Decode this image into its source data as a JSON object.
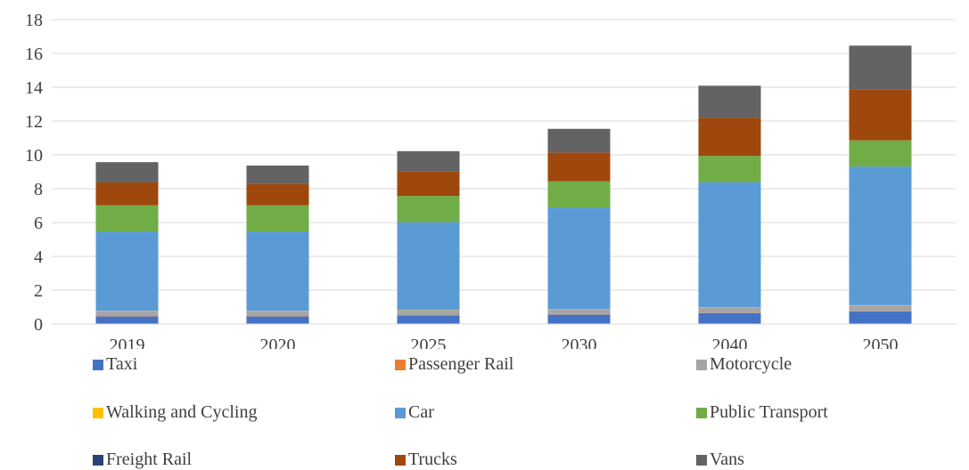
{
  "chart_data": {
    "type": "bar",
    "stacked": true,
    "categories": [
      "2019",
      "2020",
      "2025",
      "2030",
      "2040",
      "2050"
    ],
    "ylim": [
      0,
      18
    ],
    "yticks": [
      "0",
      "2",
      "4",
      "6",
      "8",
      "10",
      "12",
      "14",
      "16",
      "18"
    ],
    "grid": true,
    "legend_position": "bottom",
    "series": [
      {
        "name": "Taxi",
        "color": "#4472C4",
        "values": [
          0.45,
          0.45,
          0.5,
          0.55,
          0.65,
          0.75
        ]
      },
      {
        "name": "Passenger Rail",
        "color": "#ED7D31",
        "values": [
          0.02,
          0.02,
          0.02,
          0.02,
          0.02,
          0.02
        ]
      },
      {
        "name": "Motorcycle",
        "color": "#A5A5A5",
        "values": [
          0.28,
          0.28,
          0.28,
          0.3,
          0.3,
          0.32
        ]
      },
      {
        "name": "Walking and Cycling",
        "color": "#FFC000",
        "values": [
          0.02,
          0.02,
          0.02,
          0.02,
          0.02,
          0.02
        ]
      },
      {
        "name": "Car",
        "color": "#5B9BD5",
        "values": [
          4.7,
          4.7,
          5.2,
          6.0,
          7.4,
          8.2
        ]
      },
      {
        "name": "Public Transport",
        "color": "#70AD47",
        "values": [
          1.55,
          1.55,
          1.55,
          1.55,
          1.55,
          1.55
        ]
      },
      {
        "name": "Freight Rail",
        "color": "#264478",
        "values": [
          0.0,
          0.0,
          0.0,
          0.0,
          0.0,
          0.0
        ]
      },
      {
        "name": "Trucks",
        "color": "#9E480E",
        "values": [
          1.35,
          1.25,
          1.45,
          1.7,
          2.25,
          3.0
        ]
      },
      {
        "name": "Vans",
        "color": "#636363",
        "values": [
          1.2,
          1.1,
          1.2,
          1.4,
          1.9,
          2.6
        ]
      }
    ]
  }
}
